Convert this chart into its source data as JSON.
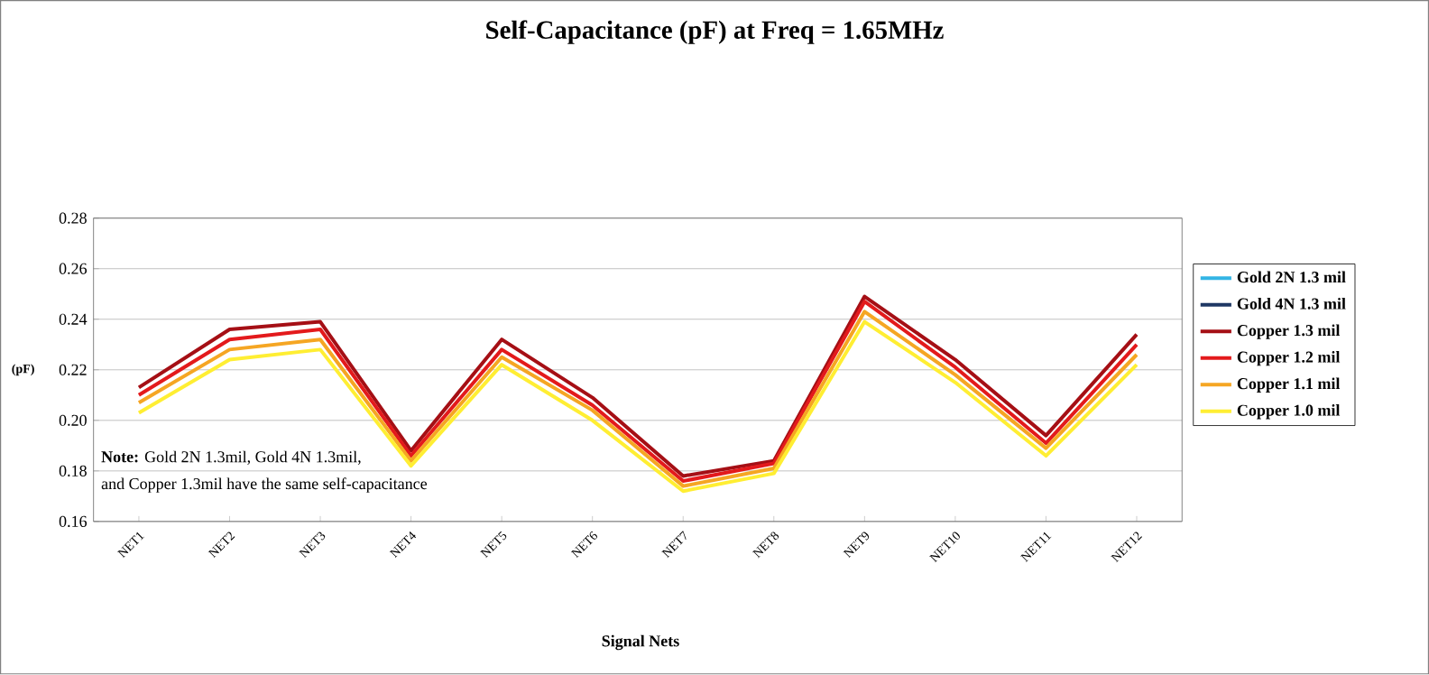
{
  "chart_data": {
    "type": "line",
    "title": "Self-Capacitance (pF) at Freq = 1.65MHz",
    "xlabel": "Signal Nets",
    "ylabel": "(pF)",
    "categories": [
      "NET1",
      "NET2",
      "NET3",
      "NET4",
      "NET5",
      "NET6",
      "NET7",
      "NET8",
      "NET9",
      "NET10",
      "NET11",
      "NET12"
    ],
    "series": [
      {
        "name": "Gold 2N 1.3 mil",
        "color": "#33b5e5",
        "values": [
          null,
          null,
          null,
          null,
          null,
          null,
          null,
          null,
          null,
          null,
          null,
          null
        ]
      },
      {
        "name": "Gold 4N 1.3 mil",
        "color": "#1f3864",
        "values": [
          null,
          null,
          null,
          null,
          null,
          null,
          null,
          null,
          null,
          null,
          null,
          null
        ]
      },
      {
        "name": "Copper 1.3 mil",
        "color": "#a50f15",
        "values": [
          0.213,
          0.236,
          0.239,
          0.188,
          0.232,
          0.209,
          0.178,
          0.184,
          0.249,
          0.224,
          0.194,
          0.234
        ]
      },
      {
        "name": "Copper 1.2 mil",
        "color": "#e31a1c",
        "values": [
          0.21,
          0.232,
          0.236,
          0.186,
          0.228,
          0.206,
          0.176,
          0.183,
          0.247,
          0.221,
          0.191,
          0.23
        ]
      },
      {
        "name": "Copper 1.1 mil",
        "color": "#f5a623",
        "values": [
          0.207,
          0.228,
          0.232,
          0.184,
          0.225,
          0.204,
          0.174,
          0.181,
          0.243,
          0.218,
          0.189,
          0.226
        ]
      },
      {
        "name": "Copper 1.0 mil",
        "color": "#ffee33",
        "values": [
          0.203,
          0.224,
          0.228,
          0.182,
          0.222,
          0.2,
          0.172,
          0.179,
          0.239,
          0.215,
          0.186,
          0.222
        ]
      }
    ],
    "ylim": [
      0.16,
      0.28
    ],
    "yticks": [
      0.16,
      0.18,
      {
        "value": 0.2,
        "label": "0.20"
      },
      0.22,
      0.24,
      0.26,
      0.28
    ],
    "grid": "y",
    "legend": "right",
    "marker": "none",
    "line_style": "solid",
    "annotations": [
      "**Note:**  Gold 2N 1.3mil, Gold 4N 1.3mil,",
      "and Copper 1.3mil have the same self-capacitance"
    ]
  }
}
